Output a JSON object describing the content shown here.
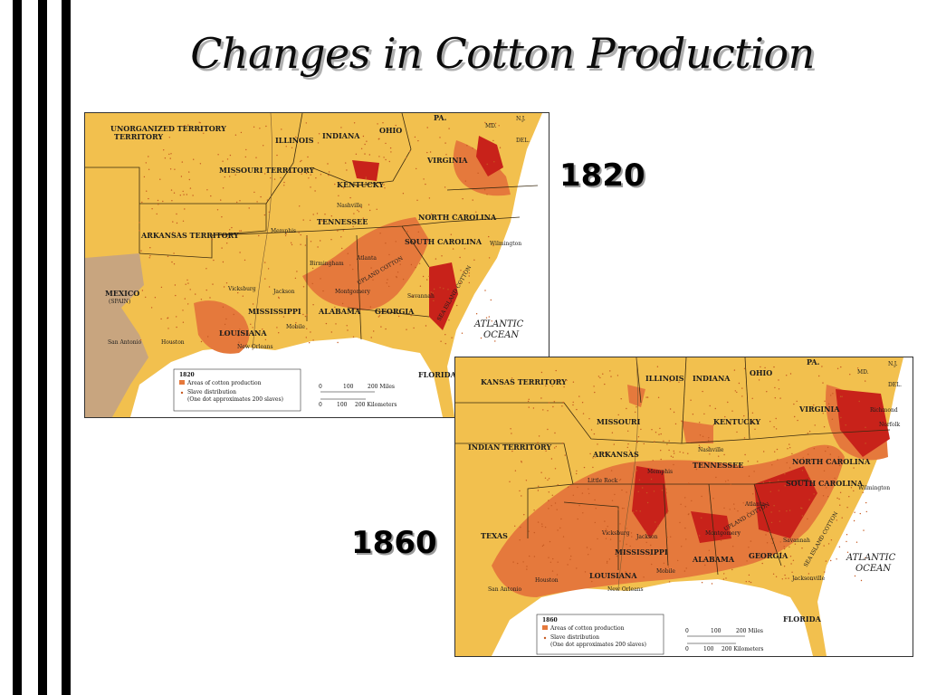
{
  "title": "Changes in Cotton Production",
  "colors": {
    "land": "#f2c04e",
    "cotton_light": "#e5793c",
    "cotton_dark": "#c8221a",
    "mexico": "#c8a57f",
    "water": "#ffffff",
    "dots": "#c65a22"
  },
  "map_1820": {
    "year_label": "1820",
    "regions": [
      "UNORGANIZED TERRITORY",
      "ILLINOIS",
      "INDIANA",
      "OHIO",
      "PA.",
      "MD.",
      "N.J.",
      "DEL.",
      "MISSOURI TERRITORY",
      "VIRGINIA",
      "KENTUCKY",
      "TENNESSEE",
      "NORTH CAROLINA",
      "SOUTH CAROLINA",
      "ARKANSAS TERRITORY",
      "MEXICO",
      "(SPAIN)",
      "MISSISSIPPI",
      "ALABAMA",
      "GEORGIA",
      "LOUISIANA",
      "FLORIDA TERRITORY"
    ],
    "cities": [
      "Memphis",
      "Nashville",
      "Wilmington",
      "Birmingham",
      "Atlanta",
      "Vicksburg",
      "Jackson",
      "Montgomery",
      "Savannah",
      "Mobile",
      "New Orleans",
      "San Antonio",
      "Houston"
    ],
    "belt_labels": [
      "UPLAND COTTON",
      "SEA ISLAND COTTON"
    ],
    "ocean": [
      "ATLANTIC",
      "OCEAN"
    ],
    "legend": {
      "year": "1820",
      "items": [
        "Areas of cotton production",
        "Slave distribution",
        "(One dot approximates 200 slaves)"
      ],
      "scale_top": [
        "0",
        "100",
        "200 Miles"
      ],
      "scale_bottom": [
        "0",
        "100",
        "200 Kilometers"
      ]
    }
  },
  "map_1860": {
    "year_label": "1860",
    "regions": [
      "KANSAS TERRITORY",
      "ILLINOIS",
      "INDIANA",
      "OHIO",
      "PA.",
      "MD.",
      "N.J.",
      "DEL.",
      "MISSOURI",
      "KENTUCKY",
      "VIRGINIA",
      "INDIAN TERRITORY",
      "ARKANSAS",
      "TENNESSEE",
      "NORTH CAROLINA",
      "SOUTH CAROLINA",
      "TEXAS",
      "MISSISSIPPI",
      "ALABAMA",
      "GEORGIA",
      "LOUISIANA",
      "FLORIDA"
    ],
    "cities": [
      "Richmond",
      "Norfolk",
      "Nashville",
      "Memphis",
      "Little Rock",
      "Wilmington",
      "Atlanta",
      "Vicksburg",
      "Jackson",
      "Montgomery",
      "Savannah",
      "Mobile",
      "New Orleans",
      "Houston",
      "San Antonio",
      "Jacksonville"
    ],
    "belt_labels": [
      "UPLAND COTTON",
      "SEA ISLAND COTTON"
    ],
    "ocean": [
      "ATLANTIC",
      "OCEAN"
    ],
    "legend": {
      "year": "1860",
      "items": [
        "Areas of cotton production",
        "Slave distribution",
        "(One dot approximates 200 slaves)"
      ],
      "scale_top": [
        "0",
        "100",
        "200 Miles"
      ],
      "scale_bottom": [
        "0",
        "100",
        "200 Kilometers"
      ]
    }
  }
}
